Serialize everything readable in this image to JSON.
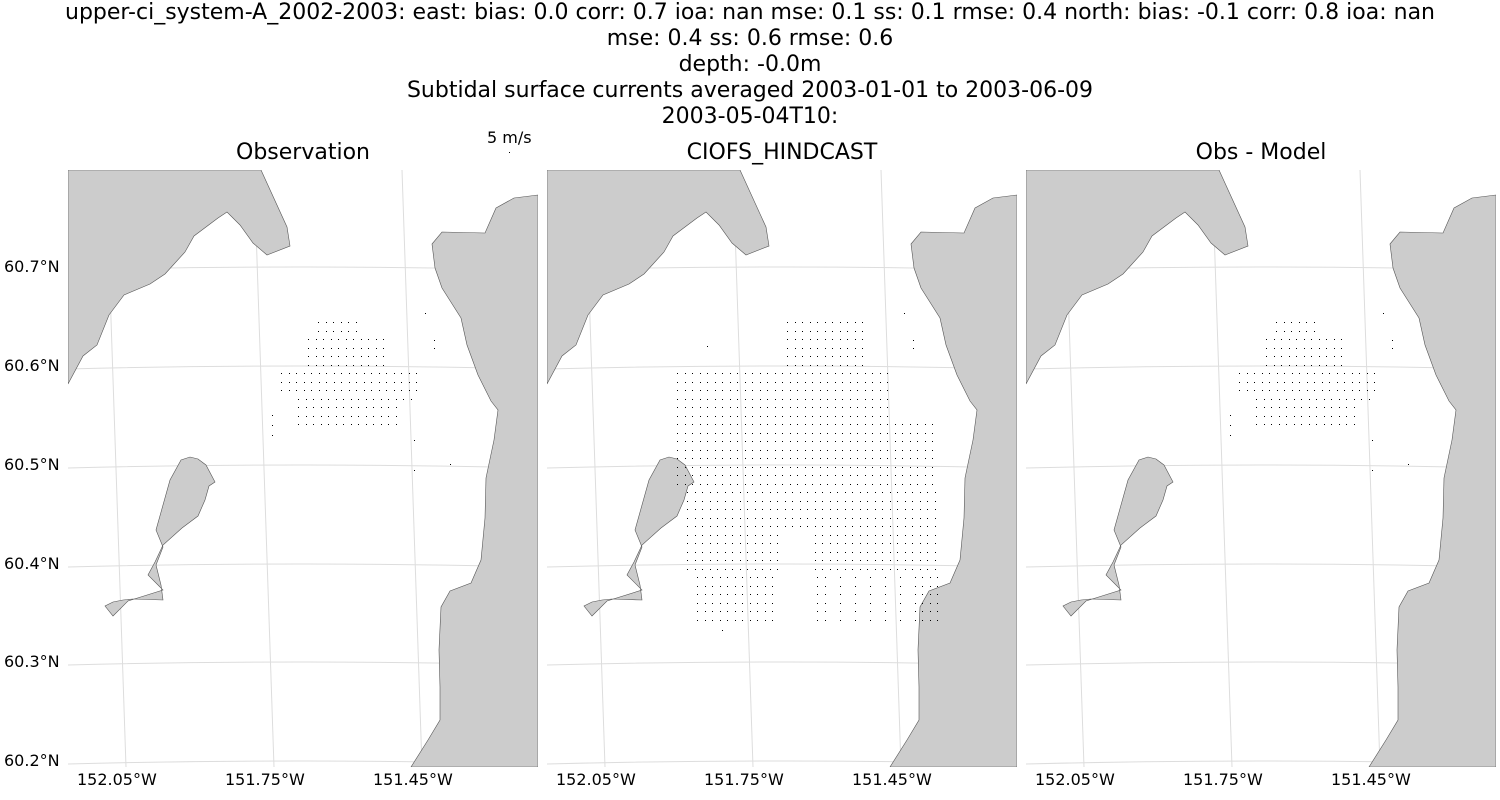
{
  "title": {
    "line1": "upper-ci_system-A_2002-2003: east: bias: 0.0  corr: 0.7  ioa: nan  mse: 0.1  ss: 0.1  rmse: 0.4  north: bias: -0.1  corr: 0.8  ioa: nan",
    "line2": "mse: 0.4  ss: 0.6  rmse: 0.6",
    "line3": "depth: -0.0m",
    "line4": "Subtidal surface currents averaged 2003-01-01 to 2003-06-09",
    "line5": "2003-05-04T10:"
  },
  "quiver_key": {
    "label": "5 m/s"
  },
  "panels": [
    {
      "title": "Observation"
    },
    {
      "title": "CIOFS_HINDCAST"
    },
    {
      "title": "Obs - Model"
    }
  ],
  "lat_labels": [
    "60.7°N",
    "60.6°N",
    "60.5°N",
    "60.4°N",
    "60.3°N",
    "60.2°N"
  ],
  "lon_labels": [
    "152.05°W",
    "151.75°W",
    "151.45°W"
  ],
  "colors": {
    "land": "#cccccc",
    "coast": "#555555",
    "grid": "#dddddd",
    "arrow": "#000000"
  }
}
